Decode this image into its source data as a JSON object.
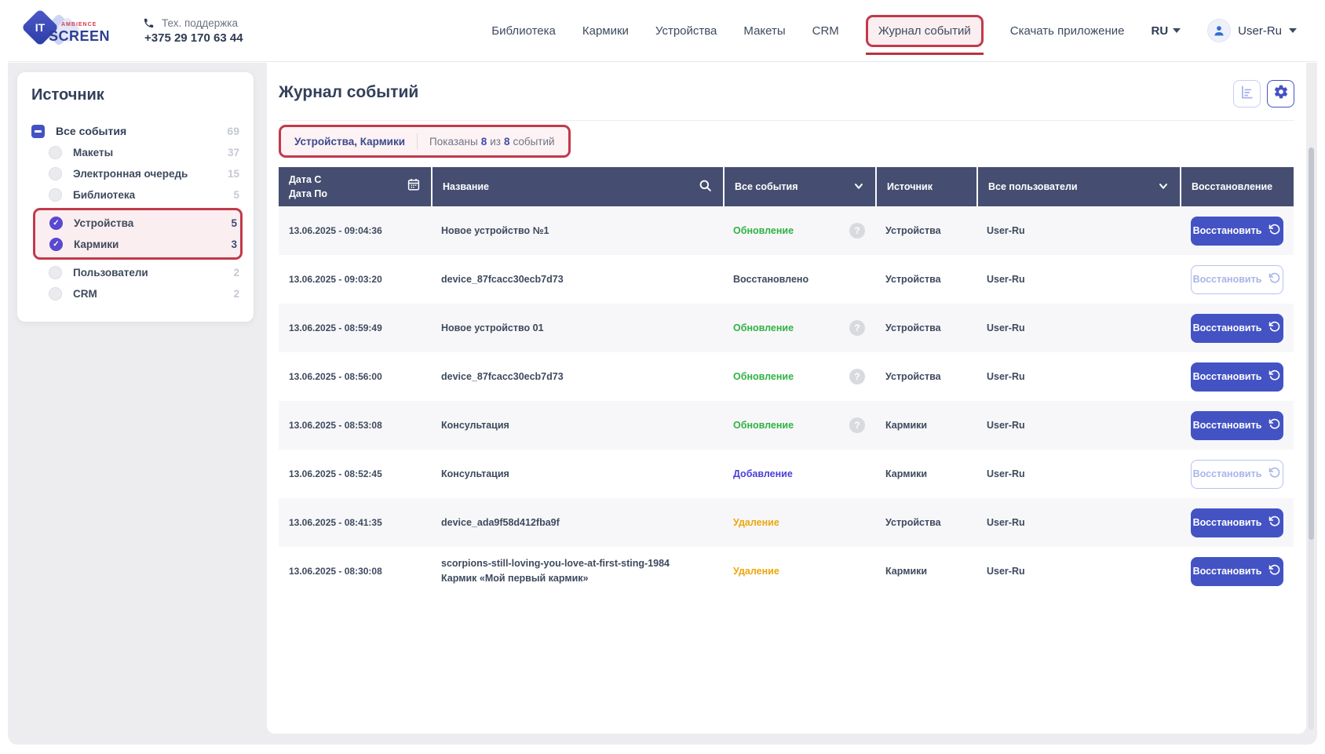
{
  "brand": {
    "logo_text": "IT",
    "name": "SCREEN",
    "tagline": "AMBIENCE"
  },
  "support": {
    "label": "Тех. поддержка",
    "phone": "+375 29 170 63 44"
  },
  "nav": {
    "items": [
      "Библиотека",
      "Кармики",
      "Устройства",
      "Макеты",
      "CRM",
      "Журнал событий"
    ],
    "active": "Журнал событий",
    "download_label": "Скачать приложение",
    "lang": "RU",
    "user": "User-Ru"
  },
  "sidebar": {
    "title": "Источник",
    "root": {
      "label": "Все события",
      "count": "69"
    },
    "items": [
      {
        "label": "Макеты",
        "count": "37",
        "checked": false,
        "highlighted": false
      },
      {
        "label": "Электронная очередь",
        "count": "15",
        "checked": false,
        "highlighted": false
      },
      {
        "label": "Библиотека",
        "count": "5",
        "checked": false,
        "highlighted": false
      },
      {
        "label": "Устройства",
        "count": "5",
        "checked": true,
        "highlighted": true
      },
      {
        "label": "Кармики",
        "count": "3",
        "checked": true,
        "highlighted": true
      },
      {
        "label": "Пользователи",
        "count": "2",
        "checked": false,
        "highlighted": false
      },
      {
        "label": "CRM",
        "count": "2",
        "checked": false,
        "highlighted": false
      }
    ]
  },
  "main": {
    "title": "Журнал событий",
    "chip": {
      "selection": "Устройства, Кармики",
      "shown_prefix": "Показаны",
      "shown_count": "8",
      "of_label": "из",
      "total_count": "8",
      "suffix": "событий"
    },
    "table": {
      "headers": {
        "date_line1": "Дата С",
        "date_line2": "Дата По",
        "name": "Название",
        "events": "Все события",
        "source": "Источник",
        "users": "Все пользователи",
        "restore": "Восстановление"
      },
      "restore_label": "Восстановить",
      "rows": [
        {
          "date": "13.06.2025 - 09:04:36",
          "name": "Новое устройство №1",
          "name2": "",
          "event": "Обновление",
          "event_type": "update",
          "has_info": true,
          "source": "Устройства",
          "user": "User-Ru",
          "button": "enabled"
        },
        {
          "date": "13.06.2025 - 09:03:20",
          "name": "device_87fcacc30ecb7d73",
          "name2": "",
          "event": "Восстановлено",
          "event_type": "restored",
          "has_info": false,
          "source": "Устройства",
          "user": "User-Ru",
          "button": "disabled"
        },
        {
          "date": "13.06.2025 - 08:59:49",
          "name": "Новое устройство 01",
          "name2": "",
          "event": "Обновление",
          "event_type": "update",
          "has_info": true,
          "source": "Устройства",
          "user": "User-Ru",
          "button": "enabled"
        },
        {
          "date": "13.06.2025 - 08:56:00",
          "name": "device_87fcacc30ecb7d73",
          "name2": "",
          "event": "Обновление",
          "event_type": "update",
          "has_info": true,
          "source": "Устройства",
          "user": "User-Ru",
          "button": "enabled"
        },
        {
          "date": "13.06.2025 - 08:53:08",
          "name": "Консультация",
          "name2": "",
          "event": "Обновление",
          "event_type": "update",
          "has_info": true,
          "source": "Кармики",
          "user": "User-Ru",
          "button": "enabled"
        },
        {
          "date": "13.06.2025 - 08:52:45",
          "name": "Консультация",
          "name2": "",
          "event": "Добавление",
          "event_type": "create",
          "has_info": false,
          "source": "Кармики",
          "user": "User-Ru",
          "button": "disabled"
        },
        {
          "date": "13.06.2025 - 08:41:35",
          "name": "device_ada9f58d412fba9f",
          "name2": "",
          "event": "Удаление",
          "event_type": "delete",
          "has_info": false,
          "source": "Устройства",
          "user": "User-Ru",
          "button": "enabled"
        },
        {
          "date": "13.06.2025 - 08:30:08",
          "name": "scorpions-still-loving-you-love-at-first-sting-1984",
          "name2": "Кармик «Мой первый кармик»",
          "event": "Удаление",
          "event_type": "delete",
          "has_info": false,
          "source": "Кармики",
          "user": "User-Ru",
          "button": "enabled"
        }
      ]
    }
  },
  "icons": {
    "info_glyph": "?"
  },
  "colors": {
    "accent": "#4353c4",
    "annotation_red": "#c13a4a",
    "table_header_bg": "#454e71",
    "event_update_green": "#2fb344",
    "event_create_blue": "#4a3fd8",
    "event_delete_orange": "#eda70c",
    "checked_purple": "#5a49d0",
    "page_bg": "#ededef"
  }
}
